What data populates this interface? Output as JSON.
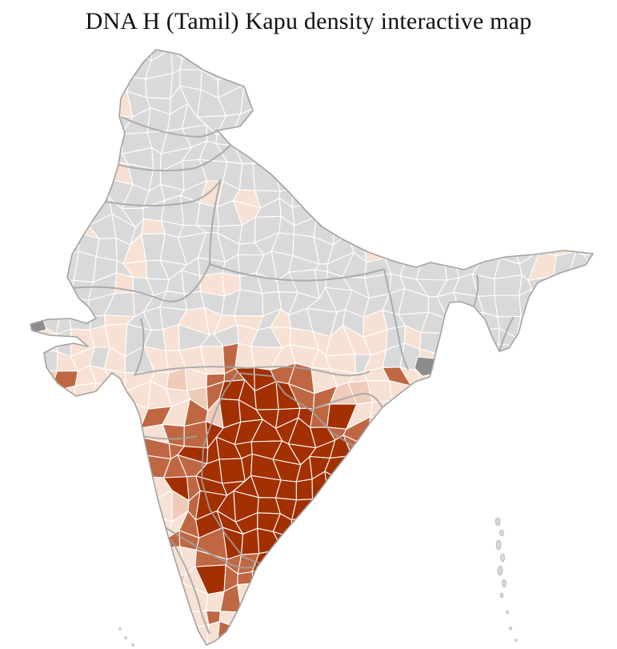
{
  "title": "DNA H (Tamil) Kapu density interactive map",
  "map": {
    "kind": "india-district-choropleth",
    "palette": {
      "no_data": "#d9d9d9",
      "low": "#f7e1d4",
      "low_alt": "#efccba",
      "medium": "#bf6742",
      "high": "#a23000",
      "special": "#8c8c8c",
      "district_border": "#ffffff",
      "state_border": "#a2a2a2",
      "sea": "#ffffff"
    }
  }
}
